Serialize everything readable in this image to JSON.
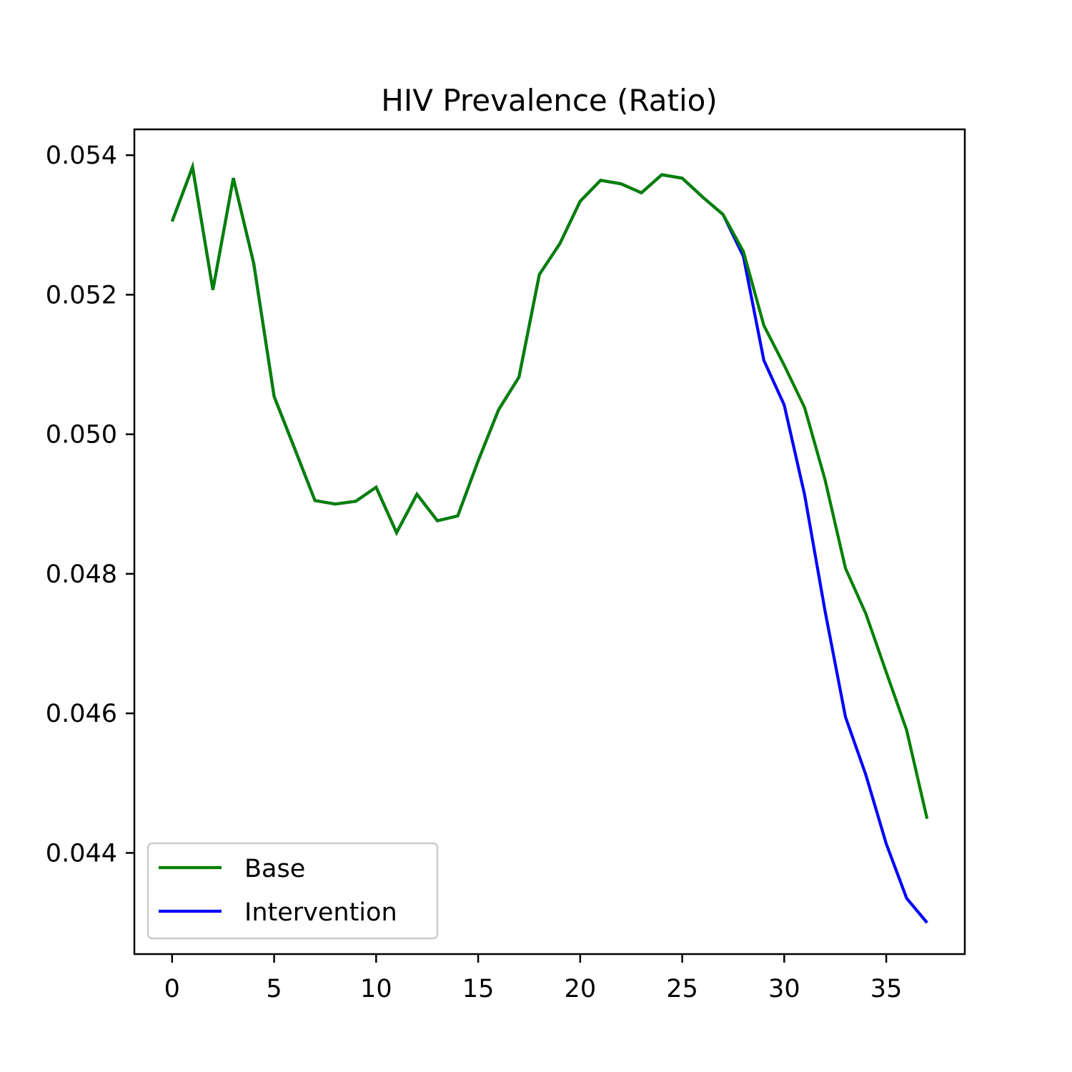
{
  "chart_data": {
    "type": "line",
    "title": "HIV Prevalence (Ratio)",
    "xlabel": "",
    "ylabel": "",
    "xlim": [
      -1.85,
      38.85
    ],
    "ylim": [
      0.04255,
      0.05437
    ],
    "xticks": [
      0,
      5,
      10,
      15,
      20,
      25,
      30,
      35
    ],
    "yticks": [
      0.044,
      0.046,
      0.048,
      0.05,
      0.052,
      0.054
    ],
    "ytick_labels": [
      "0.044",
      "0.046",
      "0.048",
      "0.050",
      "0.052",
      "0.054"
    ],
    "grid": false,
    "legend": "lower-left",
    "x": [
      0,
      1,
      2,
      3,
      4,
      5,
      6,
      7,
      8,
      9,
      10,
      11,
      12,
      13,
      14,
      15,
      16,
      17,
      18,
      19,
      20,
      21,
      22,
      23,
      24,
      25,
      26,
      27,
      28,
      29,
      30,
      31,
      32,
      33,
      34,
      35,
      36,
      37
    ],
    "series": [
      {
        "name": "Base",
        "color": "#008000",
        "values": [
          0.05305,
          0.05383,
          0.05207,
          0.05367,
          0.05245,
          0.05054,
          0.0498,
          0.04905,
          0.049,
          0.04904,
          0.04924,
          0.04859,
          0.04914,
          0.04876,
          0.04883,
          0.04962,
          0.05035,
          0.05082,
          0.05229,
          0.05273,
          0.05334,
          0.05364,
          0.05359,
          0.05346,
          0.05372,
          0.05367,
          0.0534,
          0.05315,
          0.05262,
          0.05156,
          0.05099,
          0.05038,
          0.04935,
          0.04808,
          0.04743,
          0.04659,
          0.04576,
          0.04449
        ]
      },
      {
        "name": "Intervention",
        "color": "#0000ff",
        "values": [
          0.05305,
          0.05383,
          0.05207,
          0.05367,
          0.05245,
          0.05054,
          0.0498,
          0.04905,
          0.049,
          0.04904,
          0.04924,
          0.04859,
          0.04914,
          0.04876,
          0.04883,
          0.04962,
          0.05035,
          0.05082,
          0.05229,
          0.05273,
          0.05334,
          0.05364,
          0.05359,
          0.05346,
          0.05372,
          0.05367,
          0.0534,
          0.05315,
          0.05255,
          0.05106,
          0.05042,
          0.04913,
          0.04747,
          0.04595,
          0.04512,
          0.04413,
          0.04335,
          0.043
        ]
      }
    ]
  }
}
